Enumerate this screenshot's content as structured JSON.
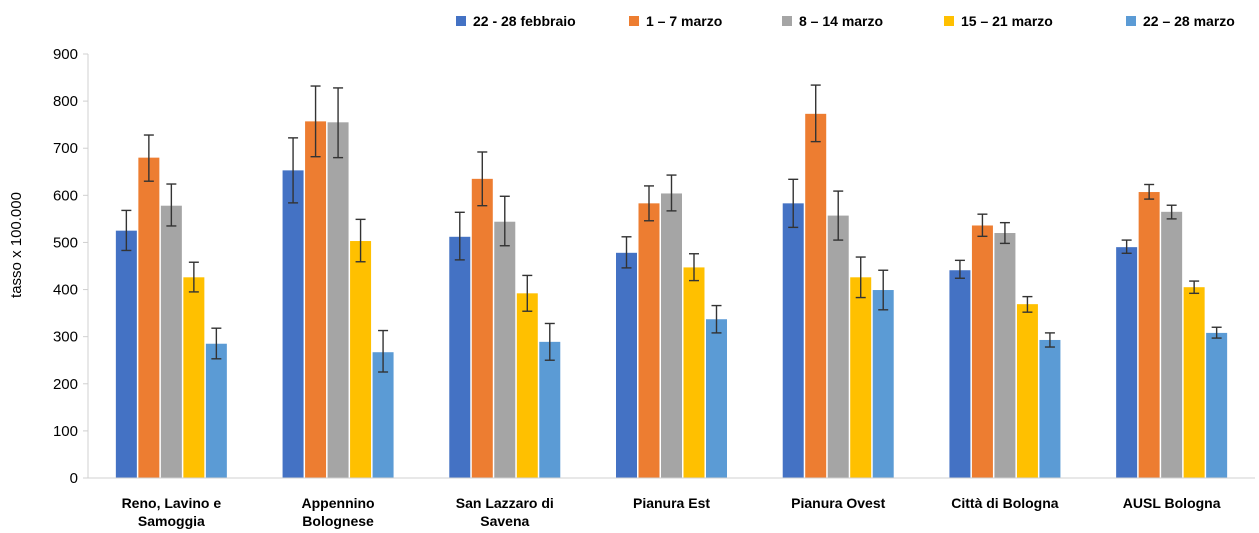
{
  "chart_data": {
    "type": "bar",
    "ylabel": "tasso x 100.000",
    "ylim": [
      0,
      900
    ],
    "yticks": [
      0,
      100,
      200,
      300,
      400,
      500,
      600,
      700,
      800,
      900
    ],
    "grid": false,
    "legend_position": "top-right",
    "categories": [
      [
        "Reno, Lavino e",
        "Samoggia"
      ],
      [
        "Appennino",
        "Bolognese"
      ],
      [
        "San Lazzaro di",
        "Savena"
      ],
      [
        "Pianura Est"
      ],
      [
        "Pianura Ovest"
      ],
      [
        "Città di Bologna"
      ],
      [
        "AUSL Bologna"
      ]
    ],
    "series": [
      {
        "name": "22 - 28 febbraio",
        "color": "#4472C4",
        "values": [
          525,
          653,
          512,
          478,
          583,
          441,
          490
        ],
        "err_low": [
          483,
          584,
          463,
          446,
          532,
          424,
          477
        ],
        "err_high": [
          568,
          722,
          564,
          512,
          634,
          462,
          505
        ]
      },
      {
        "name": "1 – 7 marzo",
        "color": "#ED7D31",
        "values": [
          680,
          757,
          635,
          583,
          773,
          536,
          607
        ],
        "err_low": [
          630,
          682,
          578,
          546,
          714,
          513,
          592
        ],
        "err_high": [
          728,
          832,
          692,
          620,
          834,
          560,
          623
        ]
      },
      {
        "name": "8 – 14 marzo",
        "color": "#A5A5A5",
        "values": [
          578,
          755,
          544,
          604,
          557,
          520,
          565
        ],
        "err_low": [
          535,
          680,
          493,
          567,
          505,
          498,
          550
        ],
        "err_high": [
          624,
          828,
          598,
          643,
          609,
          542,
          579
        ]
      },
      {
        "name": "15 – 21 marzo",
        "color": "#FFC000",
        "values": [
          426,
          503,
          392,
          447,
          426,
          369,
          405
        ],
        "err_low": [
          395,
          459,
          354,
          419,
          383,
          352,
          392
        ],
        "err_high": [
          458,
          549,
          430,
          476,
          469,
          385,
          418
        ]
      },
      {
        "name": "22 – 28 marzo",
        "color": "#5B9BD5",
        "values": [
          285,
          267,
          289,
          337,
          399,
          293,
          308
        ],
        "err_low": [
          253,
          225,
          250,
          308,
          357,
          278,
          297
        ],
        "err_high": [
          318,
          313,
          328,
          366,
          441,
          308,
          320
        ]
      }
    ]
  }
}
